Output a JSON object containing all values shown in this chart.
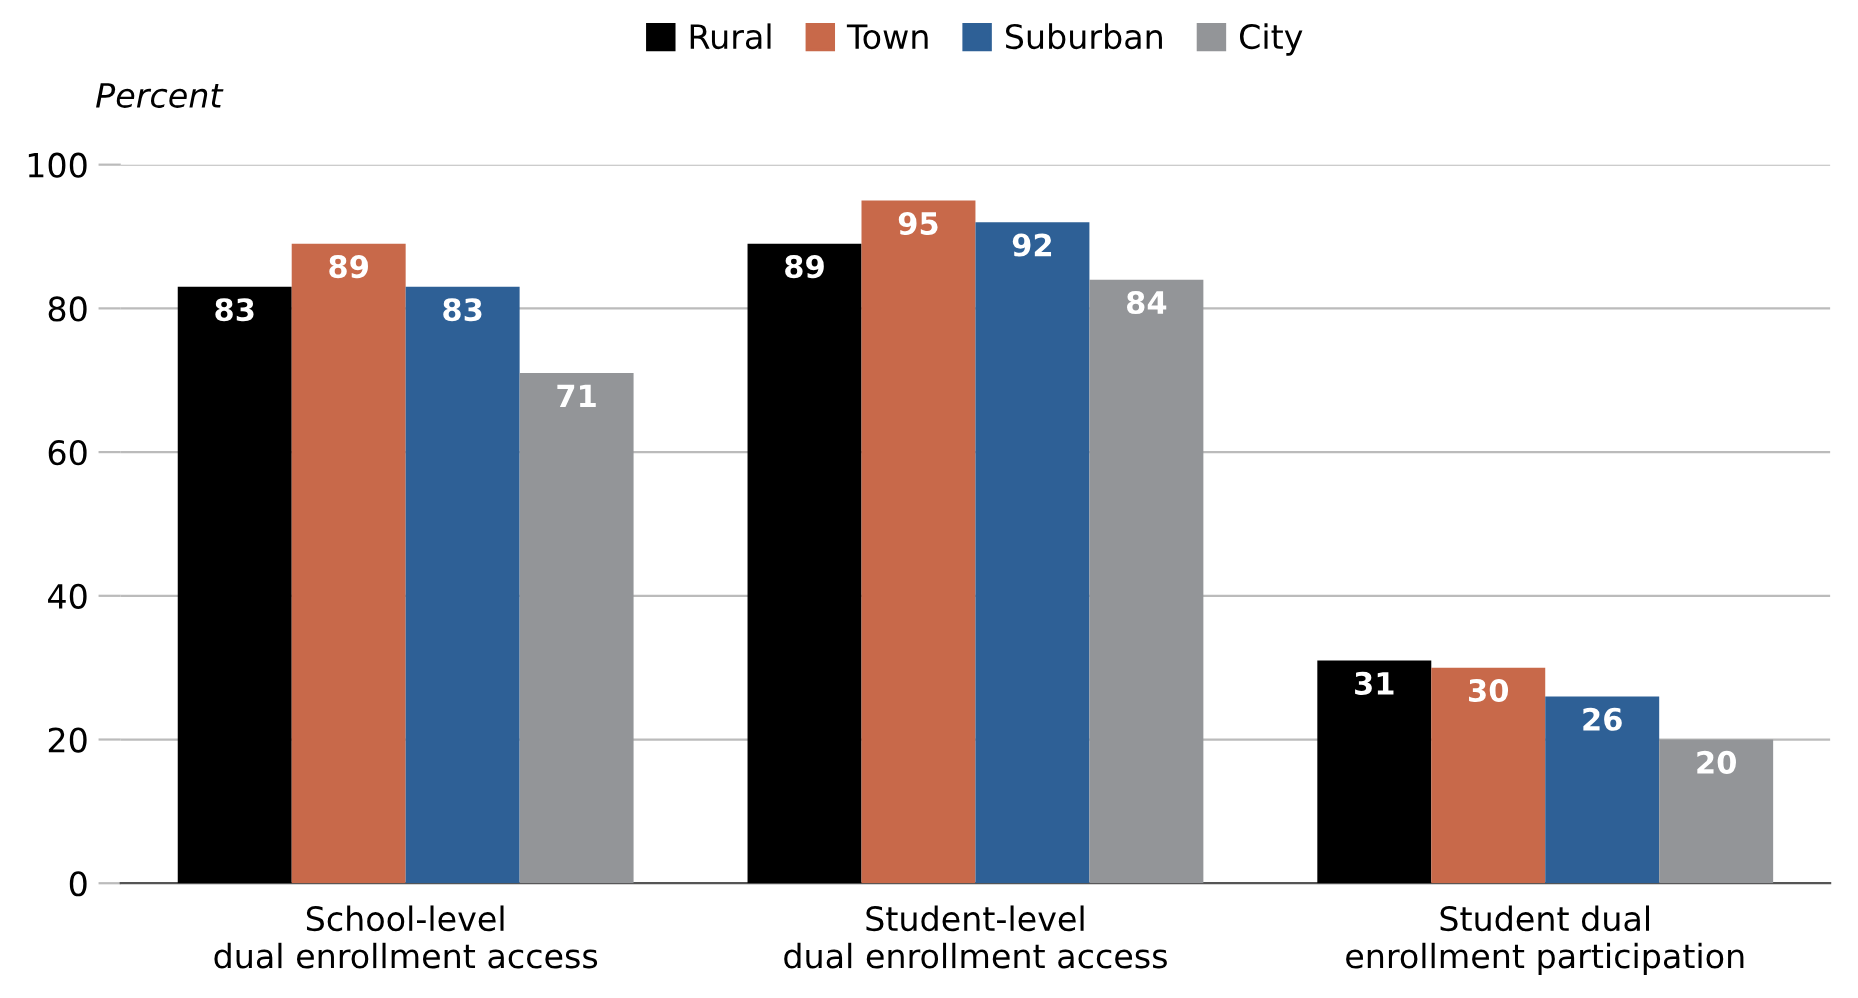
{
  "chart_data": {
    "type": "bar",
    "ylabel": "Percent",
    "categories": [
      "School-level\ndual enrollment access",
      "Student-level\ndual enrollment access",
      "Student dual\nenrollment participation"
    ],
    "series": [
      {
        "name": "Rural",
        "color": "#000000",
        "values": [
          83,
          89,
          31
        ]
      },
      {
        "name": "Town",
        "color": "#c8694a",
        "values": [
          89,
          95,
          30
        ]
      },
      {
        "name": "Suburban",
        "color": "#2e6096",
        "values": [
          83,
          92,
          26
        ]
      },
      {
        "name": "City",
        "color": "#939598",
        "values": [
          71,
          84,
          20
        ]
      }
    ],
    "ylim": [
      0,
      100
    ],
    "yticks": [
      0,
      20,
      40,
      60,
      80,
      100
    ],
    "grid": "y",
    "legend": "top",
    "data_labels": true
  }
}
